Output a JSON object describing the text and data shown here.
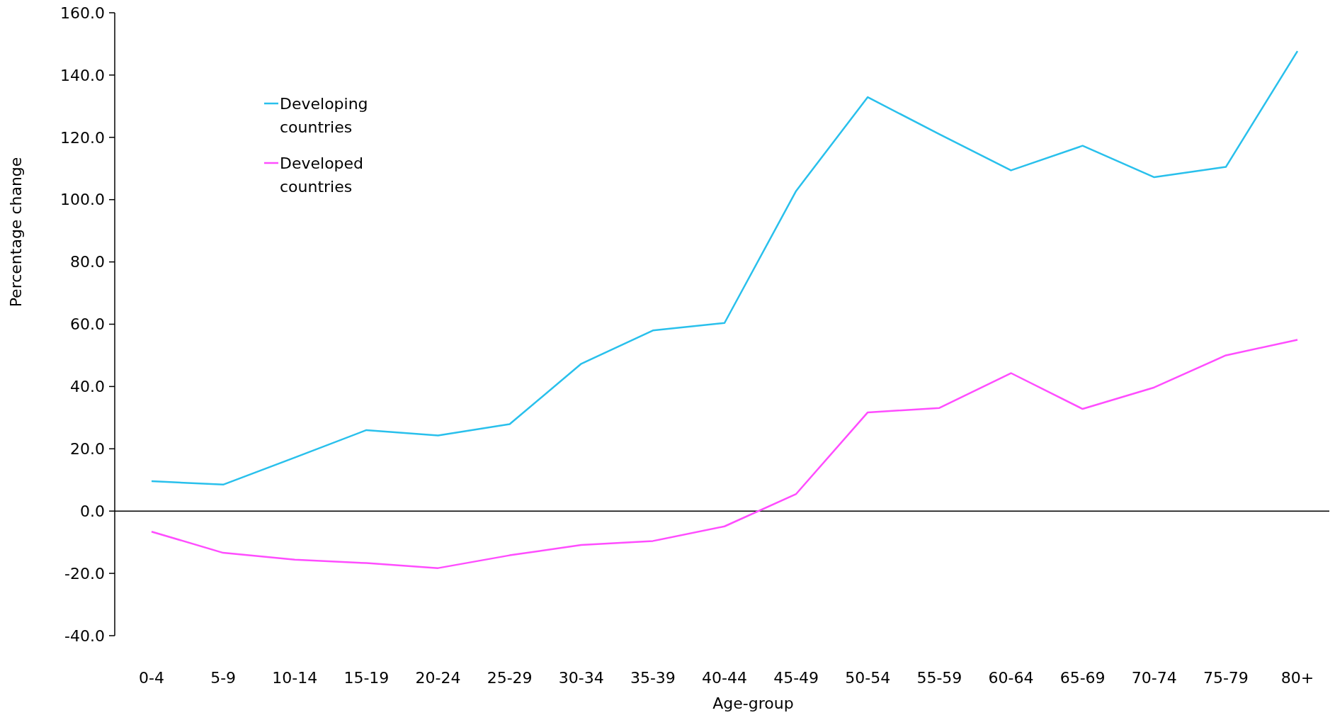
{
  "chart_data": {
    "type": "line",
    "xlabel": "Age-group",
    "ylabel": "Percentage change",
    "categories": [
      "0-4",
      "5-9",
      "10-14",
      "15-19",
      "20-24",
      "25-29",
      "30-34",
      "35-39",
      "40-44",
      "45-49",
      "50-54",
      "55-59",
      "60-64",
      "65-69",
      "70-74",
      "75-79",
      "80+"
    ],
    "series": [
      {
        "name": "Developing countries",
        "color": "#29c0ec",
        "values": [
          9.6,
          8.5,
          17.2,
          26,
          24.3,
          27.9,
          47.3,
          58,
          60.4,
          102.8,
          132.9,
          121,
          109.4,
          117.3,
          107.2,
          110.5,
          147.7
        ]
      },
      {
        "name": "Developed countries",
        "color": "#ff4dff",
        "values": [
          -6.6,
          -13.4,
          -15.6,
          -16.7,
          -18.3,
          -14.2,
          -10.9,
          -9.6,
          -4.9,
          5.5,
          31.7,
          33.1,
          44.3,
          32.8,
          39.7,
          50,
          55
        ]
      }
    ],
    "ylim": [
      -40,
      160
    ],
    "yticks": [
      {
        "value": -40,
        "label": "-40.0"
      },
      {
        "value": -20,
        "label": "-20.0"
      },
      {
        "value": 0,
        "label": "0.0"
      },
      {
        "value": 20,
        "label": "20.0"
      },
      {
        "value": 40,
        "label": "40.0"
      },
      {
        "value": 60,
        "label": "60.0"
      },
      {
        "value": 80,
        "label": "80.0"
      },
      {
        "value": 100,
        "label": "100.0"
      },
      {
        "value": 120,
        "label": "120.0"
      },
      {
        "value": 140,
        "label": "140.0"
      },
      {
        "value": 160,
        "label": "160.0"
      }
    ],
    "ref_lines": [
      {
        "axis": "y",
        "value": 0,
        "color": "#000000"
      }
    ],
    "legend": "top left",
    "grid": false,
    "marker": "none",
    "line_style": "solid"
  }
}
